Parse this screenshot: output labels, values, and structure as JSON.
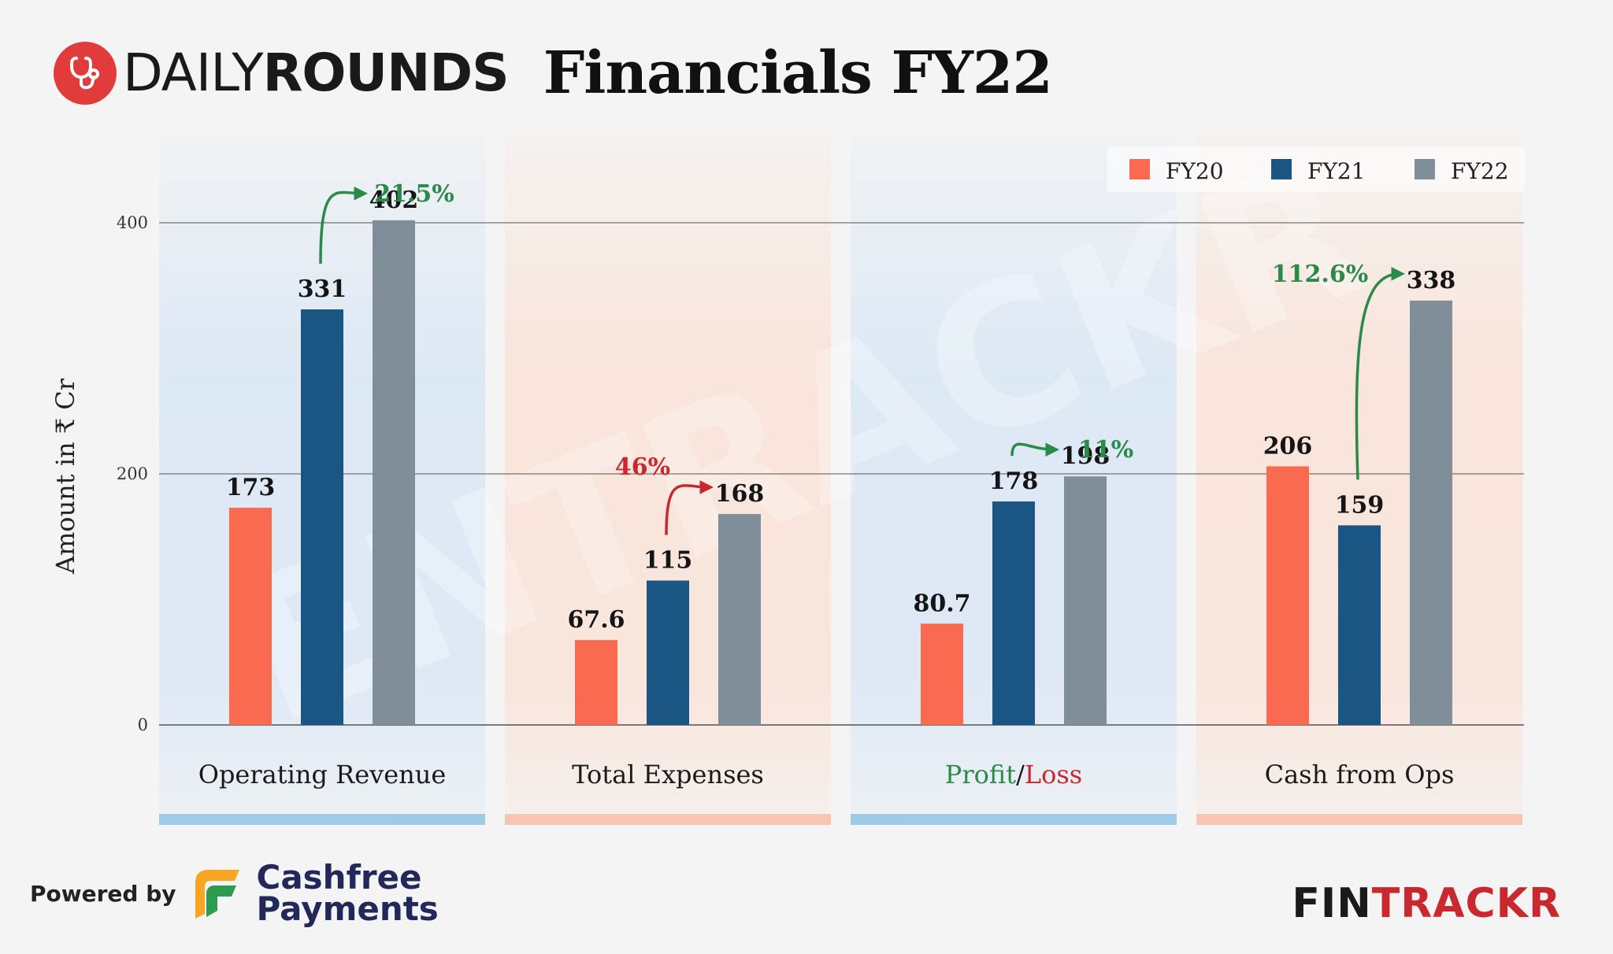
{
  "header": {
    "brand_light": "DAILY",
    "brand_bold": "ROUNDS",
    "title": "Financials FY22"
  },
  "footer": {
    "powered_by": "Powered by",
    "partner_line1": "Cashfree",
    "partner_line2": "Payments",
    "fintrackr_a": "FIN",
    "fintrackr_b": "TRACKR"
  },
  "watermark": "ENTRACKR",
  "colors": {
    "FY20": "#fa6a50",
    "FY21": "#1b5583",
    "FY22": "#7f8e98",
    "growth_positive": "#2a8a4a",
    "growth_negative": "#c8282e",
    "panel_blue": "#dce8f5",
    "panel_orange": "#f9e4da",
    "underline_blue": "#9fcbe6",
    "underline_orange": "#f8c5b2"
  },
  "chart_data": {
    "type": "bar",
    "ylabel": "Amount in ₹ Cr",
    "ylim": [
      0,
      450
    ],
    "yticks": [
      0,
      200,
      400
    ],
    "grid": true,
    "legend_position": "top-right",
    "categories": [
      "Operating Revenue",
      "Total Expenses",
      "Profit/Loss",
      "Cash from Ops"
    ],
    "series": [
      {
        "name": "FY20",
        "values": [
          173,
          67.6,
          80.7,
          206
        ],
        "labels": [
          "173",
          "67.6",
          "80.7",
          "206"
        ]
      },
      {
        "name": "FY21",
        "values": [
          331,
          115,
          178,
          159
        ],
        "labels": [
          "331",
          "115",
          "178",
          "159"
        ]
      },
      {
        "name": "FY22",
        "values": [
          402,
          168,
          198,
          338
        ],
        "labels": [
          "402",
          "168",
          "198",
          "338"
        ]
      }
    ],
    "growth_annotations": [
      {
        "category": "Operating Revenue",
        "label": "21.5%",
        "sentiment": "positive"
      },
      {
        "category": "Total Expenses",
        "label": "46%",
        "sentiment": "negative"
      },
      {
        "category": "Profit/Loss",
        "label": "11%",
        "sentiment": "positive"
      },
      {
        "category": "Cash from Ops",
        "label": "112.6%",
        "sentiment": "positive"
      }
    ],
    "category_label_parts": {
      "Profit/Loss": [
        {
          "text": "Profit",
          "color": "#2a8a4a"
        },
        {
          "text": "/",
          "color": "#1a1a1a"
        },
        {
          "text": "Loss",
          "color": "#c8282e"
        }
      ]
    }
  }
}
